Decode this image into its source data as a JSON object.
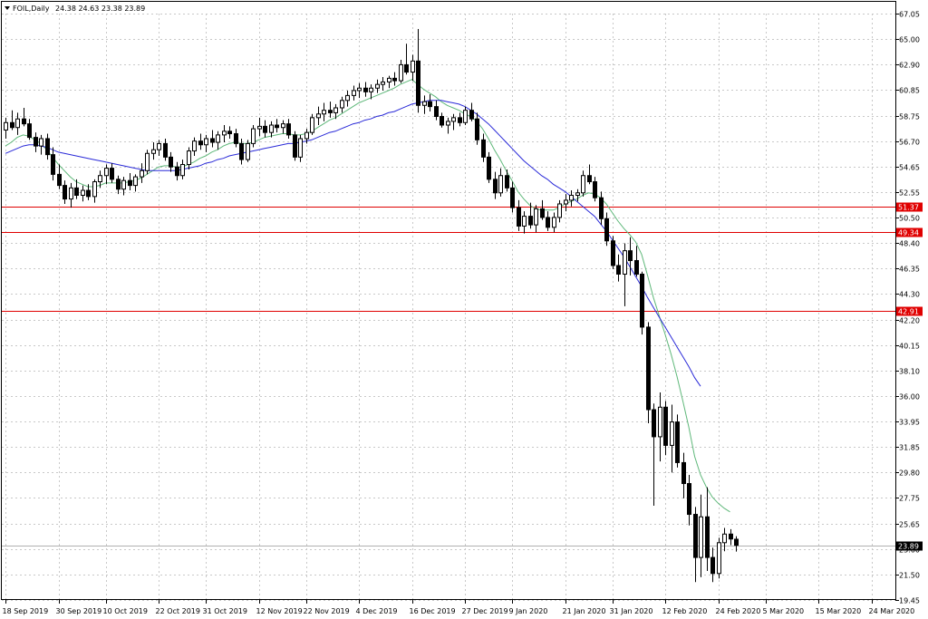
{
  "window": {
    "symbol_label": "FOIL,Daily",
    "ohlc_label": "24.38 24.63 23.38 23.89"
  },
  "colors": {
    "background": "#ffffff",
    "grid": "#c8c8c8",
    "candle_up": "#ffffff",
    "candle_down": "#000000",
    "ma_fast": "#5fb87a",
    "ma_slow": "#2a2ad8",
    "level_line": "#e00000",
    "price_tag_bg": "#000000"
  },
  "chart_data": {
    "type": "candlestick",
    "instrument": "FOIL",
    "timeframe": "Daily",
    "ylim": [
      19.45,
      67.05
    ],
    "y_ticks": [
      "67.05",
      "65.00",
      "62.90",
      "60.85",
      "58.75",
      "56.70",
      "54.65",
      "52.55",
      "50.50",
      "48.40",
      "46.35",
      "44.30",
      "42.20",
      "40.15",
      "38.10",
      "36.00",
      "33.95",
      "31.85",
      "29.80",
      "27.75",
      "25.65",
      "23.60",
      "21.50",
      "19.45"
    ],
    "x_ticks": [
      "18 Sep 2019",
      "30 Sep 2019",
      "10 Oct 2019",
      "22 Oct 2019",
      "31 Oct 2019",
      "12 Nov 2019",
      "22 Nov 2019",
      "4 Dec 2019",
      "16 Dec 2019",
      "27 Dec 2019",
      "9 Jan 2020",
      "21 Jan 2020",
      "31 Jan 2020",
      "12 Feb 2020",
      "24 Feb 2020",
      "5 Mar 2020",
      "15 Mar 2020",
      "24 Mar 2020"
    ],
    "x_tick_index": [
      0,
      9,
      17,
      26,
      34,
      43,
      51,
      60,
      69,
      78,
      86,
      95,
      103,
      112,
      121,
      129,
      138,
      147
    ],
    "horizontal_levels": [
      {
        "value": 51.37,
        "label": "51.37"
      },
      {
        "value": 49.34,
        "label": "49.34"
      },
      {
        "value": 42.91,
        "label": "42.91"
      }
    ],
    "last_price": {
      "value": 23.89,
      "label": "23.89"
    },
    "candles": [
      [
        57.6,
        58.6,
        56.9,
        58.2
      ],
      [
        58.2,
        59.2,
        57.6,
        57.8
      ],
      [
        57.8,
        59.0,
        57.2,
        58.5
      ],
      [
        58.5,
        59.4,
        57.9,
        58.1
      ],
      [
        58.1,
        58.5,
        56.8,
        57.0
      ],
      [
        57.0,
        57.4,
        55.8,
        56.3
      ],
      [
        56.3,
        57.2,
        55.6,
        56.9
      ],
      [
        56.9,
        57.3,
        55.2,
        55.6
      ],
      [
        55.6,
        56.2,
        53.5,
        54.0
      ],
      [
        54.0,
        54.8,
        52.8,
        53.1
      ],
      [
        53.1,
        53.5,
        51.6,
        52.0
      ],
      [
        52.0,
        53.3,
        51.3,
        52.9
      ],
      [
        52.9,
        53.6,
        52.0,
        52.3
      ],
      [
        52.3,
        53.1,
        51.8,
        52.7
      ],
      [
        52.7,
        53.2,
        51.9,
        52.2
      ],
      [
        52.2,
        53.6,
        51.7,
        53.4
      ],
      [
        53.4,
        54.3,
        52.9,
        53.9
      ],
      [
        53.9,
        54.8,
        53.2,
        54.5
      ],
      [
        54.5,
        54.9,
        53.3,
        53.6
      ],
      [
        53.6,
        53.9,
        52.4,
        52.8
      ],
      [
        52.8,
        53.8,
        52.3,
        53.5
      ],
      [
        53.5,
        54.1,
        52.7,
        53.1
      ],
      [
        53.1,
        54.0,
        52.6,
        53.8
      ],
      [
        53.8,
        54.9,
        53.3,
        54.3
      ],
      [
        54.3,
        56.0,
        54.0,
        55.7
      ],
      [
        55.7,
        56.6,
        55.2,
        56.0
      ],
      [
        56.0,
        56.8,
        55.5,
        56.5
      ],
      [
        56.5,
        56.9,
        55.1,
        55.4
      ],
      [
        55.4,
        55.8,
        54.2,
        54.6
      ],
      [
        54.6,
        55.0,
        53.5,
        53.9
      ],
      [
        53.9,
        55.2,
        53.6,
        54.8
      ],
      [
        54.8,
        56.2,
        54.4,
        55.9
      ],
      [
        55.9,
        57.0,
        55.5,
        56.7
      ],
      [
        56.7,
        57.3,
        56.0,
        56.4
      ],
      [
        56.4,
        57.2,
        55.8,
        56.9
      ],
      [
        56.9,
        57.6,
        56.2,
        56.6
      ],
      [
        56.6,
        57.5,
        56.0,
        57.2
      ],
      [
        57.2,
        58.0,
        56.6,
        57.5
      ],
      [
        57.5,
        57.9,
        56.9,
        57.3
      ],
      [
        57.3,
        57.7,
        56.2,
        56.5
      ],
      [
        56.5,
        56.9,
        54.8,
        55.2
      ],
      [
        55.2,
        56.8,
        55.0,
        56.5
      ],
      [
        56.5,
        58.0,
        56.2,
        57.7
      ],
      [
        57.7,
        58.6,
        57.1,
        57.9
      ],
      [
        57.9,
        58.4,
        57.0,
        57.4
      ],
      [
        57.4,
        58.3,
        57.0,
        58.0
      ],
      [
        58.0,
        58.5,
        57.4,
        57.8
      ],
      [
        57.8,
        58.4,
        57.3,
        58.1
      ],
      [
        58.1,
        58.5,
        56.9,
        57.2
      ],
      [
        57.2,
        57.5,
        55.1,
        55.4
      ],
      [
        55.4,
        57.2,
        55.0,
        56.9
      ],
      [
        56.9,
        57.7,
        56.5,
        57.4
      ],
      [
        57.4,
        58.9,
        57.2,
        58.6
      ],
      [
        58.6,
        59.5,
        58.0,
        58.9
      ],
      [
        58.9,
        59.8,
        58.3,
        59.2
      ],
      [
        59.2,
        59.9,
        58.6,
        59.0
      ],
      [
        59.0,
        59.7,
        58.5,
        59.4
      ],
      [
        59.4,
        60.3,
        59.0,
        60.0
      ],
      [
        60.0,
        60.8,
        59.5,
        60.4
      ],
      [
        60.4,
        61.2,
        60.0,
        60.8
      ],
      [
        60.8,
        61.4,
        60.2,
        61.0
      ],
      [
        61.0,
        61.5,
        60.3,
        60.7
      ],
      [
        60.7,
        61.3,
        60.1,
        61.0
      ],
      [
        61.0,
        61.7,
        60.6,
        61.3
      ],
      [
        61.3,
        61.9,
        60.8,
        61.5
      ],
      [
        61.5,
        62.0,
        61.0,
        61.8
      ],
      [
        61.8,
        62.3,
        61.2,
        61.6
      ],
      [
        61.6,
        63.3,
        61.4,
        62.9
      ],
      [
        62.9,
        64.6,
        62.1,
        62.3
      ],
      [
        62.3,
        63.7,
        61.6,
        63.2
      ],
      [
        63.2,
        65.8,
        59.0,
        59.6
      ],
      [
        59.6,
        60.4,
        58.9,
        59.9
      ],
      [
        59.9,
        60.5,
        59.1,
        59.5
      ],
      [
        59.5,
        60.0,
        58.4,
        58.7
      ],
      [
        58.7,
        59.0,
        57.8,
        58.0
      ],
      [
        58.0,
        58.6,
        57.3,
        58.3
      ],
      [
        58.3,
        58.9,
        57.6,
        58.6
      ],
      [
        58.6,
        59.0,
        57.9,
        58.2
      ],
      [
        58.2,
        59.5,
        58.0,
        59.2
      ],
      [
        59.2,
        59.8,
        58.3,
        58.5
      ],
      [
        58.5,
        59.0,
        56.4,
        56.8
      ],
      [
        56.8,
        57.3,
        55.0,
        55.4
      ],
      [
        55.4,
        55.8,
        53.3,
        53.6
      ],
      [
        53.6,
        54.2,
        52.0,
        52.5
      ],
      [
        52.5,
        54.5,
        52.2,
        53.9
      ],
      [
        53.9,
        54.4,
        52.6,
        52.9
      ],
      [
        52.9,
        53.4,
        50.9,
        51.3
      ],
      [
        51.3,
        51.9,
        49.4,
        49.8
      ],
      [
        49.8,
        51.0,
        49.2,
        50.6
      ],
      [
        50.6,
        51.7,
        49.6,
        49.9
      ],
      [
        49.9,
        51.5,
        49.3,
        51.2
      ],
      [
        51.2,
        51.9,
        50.3,
        50.5
      ],
      [
        50.5,
        51.0,
        49.4,
        49.7
      ],
      [
        49.7,
        50.9,
        49.3,
        50.5
      ],
      [
        50.5,
        51.9,
        50.1,
        51.6
      ],
      [
        51.6,
        52.4,
        51.0,
        51.9
      ],
      [
        51.9,
        52.7,
        51.4,
        52.3
      ],
      [
        52.3,
        52.8,
        51.8,
        52.5
      ],
      [
        52.5,
        54.3,
        52.2,
        53.9
      ],
      [
        53.9,
        54.8,
        53.2,
        53.4
      ],
      [
        53.4,
        53.8,
        51.8,
        52.1
      ],
      [
        52.1,
        52.6,
        49.9,
        50.4
      ],
      [
        50.4,
        50.9,
        48.2,
        48.6
      ],
      [
        48.6,
        49.0,
        46.3,
        46.6
      ],
      [
        46.6,
        47.5,
        45.3,
        45.9
      ],
      [
        45.9,
        48.4,
        43.3,
        47.8
      ],
      [
        47.8,
        48.9,
        45.8,
        47.0
      ],
      [
        47.0,
        48.2,
        45.7,
        45.9
      ],
      [
        45.9,
        46.1,
        41.0,
        41.6
      ],
      [
        41.6,
        42.0,
        33.8,
        34.9
      ],
      [
        34.9,
        35.4,
        27.1,
        32.7
      ],
      [
        32.7,
        36.3,
        30.7,
        35.1
      ],
      [
        35.1,
        35.6,
        31.2,
        32.0
      ],
      [
        32.0,
        35.3,
        29.8,
        33.9
      ],
      [
        33.9,
        34.5,
        30.2,
        30.6
      ],
      [
        30.6,
        31.4,
        27.7,
        28.9
      ],
      [
        28.9,
        29.6,
        25.5,
        26.4
      ],
      [
        26.4,
        27.0,
        20.9,
        22.9
      ],
      [
        22.9,
        28.0,
        21.3,
        26.2
      ],
      [
        26.2,
        28.6,
        21.8,
        22.9
      ],
      [
        22.9,
        23.7,
        20.9,
        21.6
      ],
      [
        21.6,
        24.5,
        21.2,
        24.1
      ],
      [
        24.1,
        25.3,
        23.4,
        24.8
      ],
      [
        24.8,
        25.2,
        23.9,
        24.4
      ],
      [
        24.38,
        24.63,
        23.38,
        23.89
      ]
    ],
    "series": [
      {
        "name": "",
        "color": "#5fb87a",
        "start_index": 0,
        "values": [
          56.3,
          56.6,
          57.0,
          57.2,
          57.1,
          56.8,
          56.5,
          56.0,
          55.4,
          54.8,
          54.3,
          53.8,
          53.4,
          53.2,
          53.0,
          53.0,
          53.1,
          53.3,
          53.3,
          53.3,
          53.3,
          53.4,
          53.5,
          53.7,
          54.0,
          54.3,
          54.6,
          54.7,
          54.7,
          54.6,
          54.6,
          54.8,
          55.0,
          55.3,
          55.5,
          55.8,
          56.0,
          56.3,
          56.5,
          56.6,
          56.5,
          56.5,
          56.6,
          56.8,
          57.0,
          57.1,
          57.2,
          57.3,
          57.3,
          57.2,
          57.2,
          57.3,
          57.5,
          57.8,
          58.1,
          58.4,
          58.6,
          58.9,
          59.2,
          59.5,
          59.8,
          60.0,
          60.2,
          60.4,
          60.6,
          60.8,
          61.0,
          61.3,
          61.5,
          61.7,
          61.3,
          60.9,
          60.6,
          60.3,
          59.9,
          59.6,
          59.4,
          59.2,
          58.9,
          58.7,
          58.3,
          57.7,
          56.9,
          56.0,
          55.2,
          54.3,
          53.5,
          52.6,
          52.0,
          51.5,
          51.2,
          51.1,
          51.1,
          51.1,
          51.3,
          51.6,
          51.8,
          52.0,
          52.3,
          52.5,
          52.4,
          52.1,
          51.6,
          50.9,
          50.2,
          49.6,
          49.1,
          48.5,
          47.5,
          45.8,
          44.0,
          42.5,
          41.0,
          39.4,
          37.6,
          35.6,
          33.5,
          31.1,
          29.6,
          28.6,
          27.8,
          27.3,
          26.9,
          26.6
        ]
      },
      {
        "name": "",
        "color": "#2a2ad8",
        "start_index": 0,
        "values": [
          55.7,
          55.9,
          56.1,
          56.3,
          56.4,
          56.4,
          56.3,
          56.2,
          56.0,
          55.8,
          55.7,
          55.6,
          55.5,
          55.4,
          55.3,
          55.2,
          55.1,
          55.0,
          54.9,
          54.8,
          54.7,
          54.6,
          54.5,
          54.4,
          54.3,
          54.3,
          54.3,
          54.3,
          54.3,
          54.3,
          54.4,
          54.5,
          54.6,
          54.7,
          54.9,
          55.0,
          55.2,
          55.3,
          55.5,
          55.6,
          55.7,
          55.8,
          55.9,
          56.0,
          56.1,
          56.2,
          56.3,
          56.4,
          56.5,
          56.5,
          56.6,
          56.7,
          56.8,
          57.0,
          57.2,
          57.4,
          57.5,
          57.7,
          57.9,
          58.1,
          58.2,
          58.4,
          58.5,
          58.7,
          58.8,
          59.0,
          59.1,
          59.3,
          59.5,
          59.7,
          59.8,
          59.9,
          60.0,
          60.0,
          60.0,
          59.9,
          59.8,
          59.7,
          59.5,
          59.2,
          58.9,
          58.5,
          58.1,
          57.6,
          57.1,
          56.6,
          56.1,
          55.6,
          55.1,
          54.7,
          54.3,
          53.9,
          53.6,
          53.2,
          52.9,
          52.6,
          52.2,
          51.8,
          51.4,
          51.0,
          50.6,
          50.0,
          49.4,
          48.7,
          48.0,
          47.3,
          46.5,
          45.7,
          44.9,
          44.0,
          43.2,
          42.4,
          41.6,
          40.8,
          40.0,
          39.2,
          38.4,
          37.5,
          36.8
        ]
      }
    ]
  }
}
